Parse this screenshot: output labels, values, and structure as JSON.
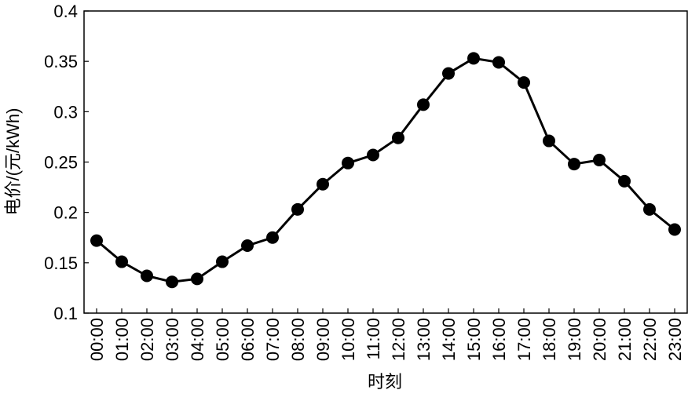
{
  "chart_data": {
    "type": "line",
    "xlabel": "时刻",
    "ylabel": "电价/(元/kWh)",
    "categories": [
      "00:00",
      "01:00",
      "02:00",
      "03:00",
      "04:00",
      "05:00",
      "06:00",
      "07:00",
      "08:00",
      "09:00",
      "10:00",
      "11:00",
      "12:00",
      "13:00",
      "14:00",
      "15:00",
      "16:00",
      "17:00",
      "18:00",
      "19:00",
      "20:00",
      "21:00",
      "22:00",
      "23:00"
    ],
    "values": [
      0.172,
      0.151,
      0.137,
      0.131,
      0.134,
      0.151,
      0.167,
      0.175,
      0.203,
      0.228,
      0.249,
      0.257,
      0.274,
      0.307,
      0.338,
      0.353,
      0.349,
      0.329,
      0.271,
      0.248,
      0.252,
      0.231,
      0.203,
      0.183
    ],
    "color": "#000000",
    "ylim": [
      0.1,
      0.4
    ],
    "yticks": [
      0.1,
      0.15,
      0.2,
      0.25,
      0.3,
      0.35,
      0.4
    ],
    "grid": false
  }
}
